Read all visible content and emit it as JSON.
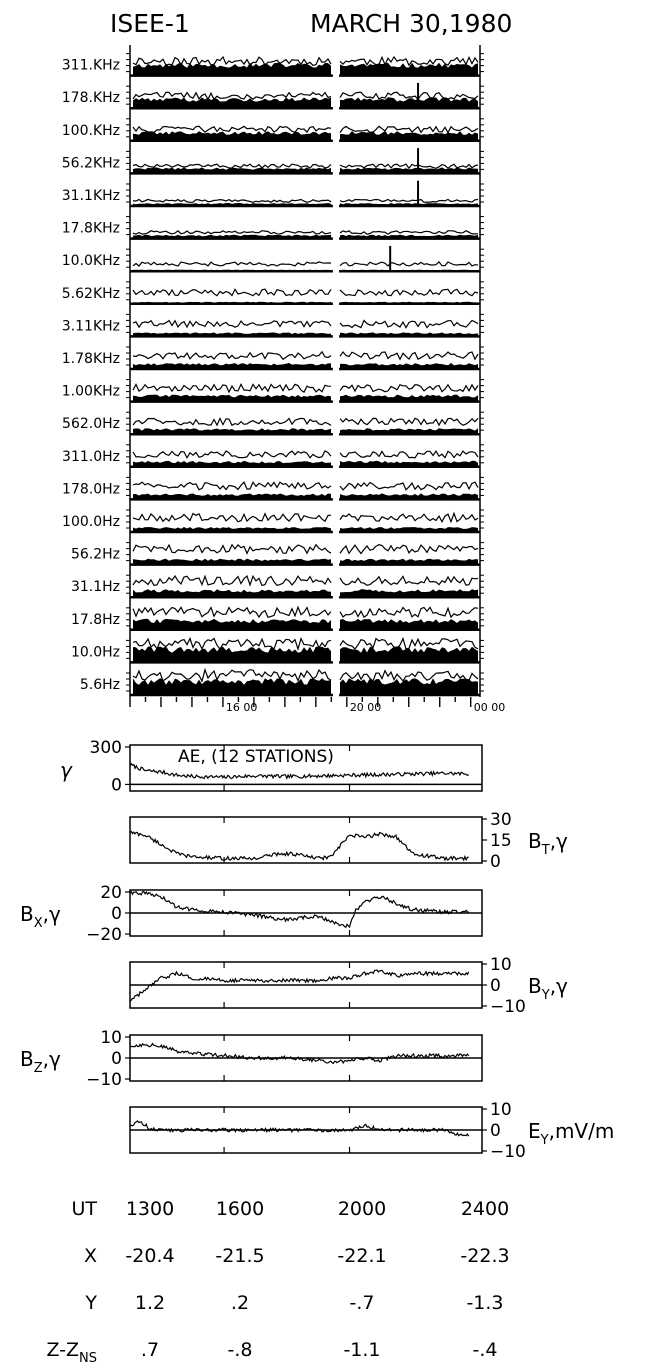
{
  "header": {
    "spacecraft": "ISEE-1",
    "date": "MARCH 30,1980"
  },
  "chart_data": [
    {
      "type": "area",
      "title": "",
      "x_tick_labels": [
        "16 00",
        "20 00",
        "00 00"
      ],
      "x_tick_hours": [
        16,
        20,
        24
      ],
      "x_range_hours": [
        13,
        24.3
      ],
      "data_gap_hours": [
        19.55,
        19.75
      ],
      "channels": [
        {
          "label": "311.KHz",
          "fill": 0.65,
          "trace": 0.7,
          "spike": null
        },
        {
          "label": "178.KHz",
          "fill": 0.55,
          "trace": 0.6,
          "spike": 22.3
        },
        {
          "label": "100.KHz",
          "fill": 0.5,
          "trace": 0.55,
          "spike": null
        },
        {
          "label": "56.2KHz",
          "fill": 0.3,
          "trace": 0.35,
          "spike": 22.3
        },
        {
          "label": "31.1KHz",
          "fill": 0.15,
          "trace": 0.25,
          "spike": 22.3
        },
        {
          "label": "17.8KHz",
          "fill": 0.2,
          "trace": 0.3,
          "spike": null
        },
        {
          "label": "10.0KHz",
          "fill": 0.08,
          "trace": 0.35,
          "spike": 21.4
        },
        {
          "label": "5.62KHz",
          "fill": 0.1,
          "trace": 0.55,
          "spike": null
        },
        {
          "label": "3.11KHz",
          "fill": 0.2,
          "trace": 0.6,
          "spike": null
        },
        {
          "label": "1.78KHz",
          "fill": 0.3,
          "trace": 0.65,
          "spike": null
        },
        {
          "label": "1.00KHz",
          "fill": 0.35,
          "trace": 0.65,
          "spike": null
        },
        {
          "label": "562.0Hz",
          "fill": 0.3,
          "trace": 0.6,
          "spike": null
        },
        {
          "label": "311.0Hz",
          "fill": 0.3,
          "trace": 0.6,
          "spike": null
        },
        {
          "label": "178.0Hz",
          "fill": 0.3,
          "trace": 0.65,
          "spike": null
        },
        {
          "label": "100.0Hz",
          "fill": 0.25,
          "trace": 0.7,
          "spike": null
        },
        {
          "label": "56.2Hz",
          "fill": 0.3,
          "trace": 0.75,
          "spike": null
        },
        {
          "label": "31.1Hz",
          "fill": 0.4,
          "trace": 0.8,
          "spike": null
        },
        {
          "label": "17.8Hz",
          "fill": 0.55,
          "trace": 0.85,
          "spike": null
        },
        {
          "label": "10.0Hz",
          "fill": 0.8,
          "trace": 0.9,
          "spike": null
        },
        {
          "label": "5.6Hz",
          "fill": 0.85,
          "trace": 0.95,
          "spike": null
        }
      ]
    },
    {
      "type": "line",
      "panels": [
        {
          "id": "ae",
          "inner_label": "AE, (12 STATIONS)",
          "label_side": "left",
          "symbol": "γ",
          "tick_labels": [
            "300",
            "0"
          ],
          "ylim": [
            -50,
            300
          ],
          "x_hours": [
            13.0,
            13.5,
            14.0,
            14.5,
            15.0,
            16.0,
            17.0,
            18.0,
            19.0,
            20.0,
            21.0,
            22.0,
            23.0,
            23.8
          ],
          "values": [
            150,
            105,
            95,
            70,
            60,
            55,
            65,
            60,
            65,
            70,
            75,
            80,
            85,
            80
          ]
        },
        {
          "id": "bt",
          "label": "B",
          "sub": "T",
          "suffix": ",γ",
          "label_side": "right",
          "tick_labels": [
            "30",
            "15",
            "0"
          ],
          "ylim": [
            0,
            30
          ],
          "x_hours": [
            13.0,
            13.5,
            14.0,
            14.5,
            15.0,
            16.0,
            17.0,
            17.7,
            18.2,
            19.0,
            19.4,
            20.0,
            20.5,
            21.0,
            21.5,
            22.0,
            23.0,
            23.8
          ],
          "values": [
            20,
            18,
            12,
            6,
            4,
            3,
            3,
            6,
            6,
            3,
            4,
            18,
            17,
            19,
            17,
            6,
            3,
            3
          ]
        },
        {
          "id": "bx",
          "label": "B",
          "sub": "X",
          "suffix": ",γ",
          "label_side": "left",
          "tick_labels": [
            "20",
            "0",
            "−20"
          ],
          "ylim": [
            -20,
            20
          ],
          "x_hours": [
            13.0,
            13.5,
            14.0,
            14.5,
            15.0,
            16.0,
            17.0,
            17.5,
            18.0,
            18.5,
            19.0,
            19.5,
            20.0,
            20.2,
            20.5,
            21.0,
            21.5,
            22.0,
            23.0,
            23.8
          ],
          "values": [
            18,
            17,
            14,
            5,
            3,
            1,
            -2,
            -4,
            -6,
            -4,
            -3,
            -8,
            -12,
            2,
            10,
            14,
            8,
            3,
            1,
            1
          ]
        },
        {
          "id": "by",
          "label": "B",
          "sub": "Y",
          "suffix": ",γ",
          "label_side": "right",
          "tick_labels": [
            "10",
            "0",
            "−10"
          ],
          "ylim": [
            -10,
            10
          ],
          "x_hours": [
            13.0,
            13.3,
            14.0,
            14.5,
            15.0,
            16.0,
            17.0,
            18.0,
            19.0,
            19.5,
            20.0,
            20.5,
            21.0,
            21.5,
            22.0,
            23.0,
            23.8
          ],
          "values": [
            -7,
            -4,
            3,
            5,
            3,
            2,
            2,
            2,
            2,
            3,
            3,
            5,
            6,
            4,
            5,
            5,
            5
          ]
        },
        {
          "id": "bz",
          "label": "B",
          "sub": "Z",
          "suffix": ",γ",
          "label_side": "left",
          "tick_labels": [
            "10",
            "0",
            "−10"
          ],
          "ylim": [
            -10,
            10
          ],
          "x_hours": [
            13.0,
            13.5,
            14.0,
            14.5,
            15.0,
            16.0,
            17.0,
            18.0,
            19.0,
            19.5,
            20.0,
            20.5,
            21.0,
            21.5,
            22.0,
            23.0,
            23.8
          ],
          "values": [
            5,
            6,
            5,
            3,
            2,
            1,
            0,
            0,
            -1,
            -2,
            -1,
            0,
            -1,
            1,
            1,
            1,
            1
          ]
        },
        {
          "id": "ey",
          "label": "E",
          "sub": "Y",
          "suffix": ",mV/m",
          "label_side": "right",
          "tick_labels": [
            "10",
            "0",
            "−10"
          ],
          "ylim": [
            -10,
            10
          ],
          "x_hours": [
            13.0,
            13.3,
            13.6,
            14.0,
            15.0,
            16.0,
            17.0,
            18.0,
            19.0,
            20.0,
            20.5,
            21.0,
            22.0,
            23.0,
            23.5,
            23.8
          ],
          "values": [
            2,
            4,
            1,
            0,
            0,
            0,
            0,
            0,
            0,
            0,
            2,
            0,
            0,
            0,
            -2,
            -2
          ]
        }
      ]
    }
  ],
  "ephemeris": {
    "rows": [
      {
        "label": "UT",
        "values": [
          "1300",
          "1600",
          "2000",
          "2400"
        ]
      },
      {
        "label": "X",
        "values": [
          "-20.4",
          "-21.5",
          "-22.1",
          "-22.3"
        ]
      },
      {
        "label": "Y",
        "values": [
          "1.2",
          ".2",
          "-.7",
          "-1.3"
        ]
      },
      {
        "label": "Z-Z",
        "sub": "NS",
        "values": [
          ".7",
          "-.8",
          "-1.1",
          "-.4"
        ]
      }
    ]
  }
}
